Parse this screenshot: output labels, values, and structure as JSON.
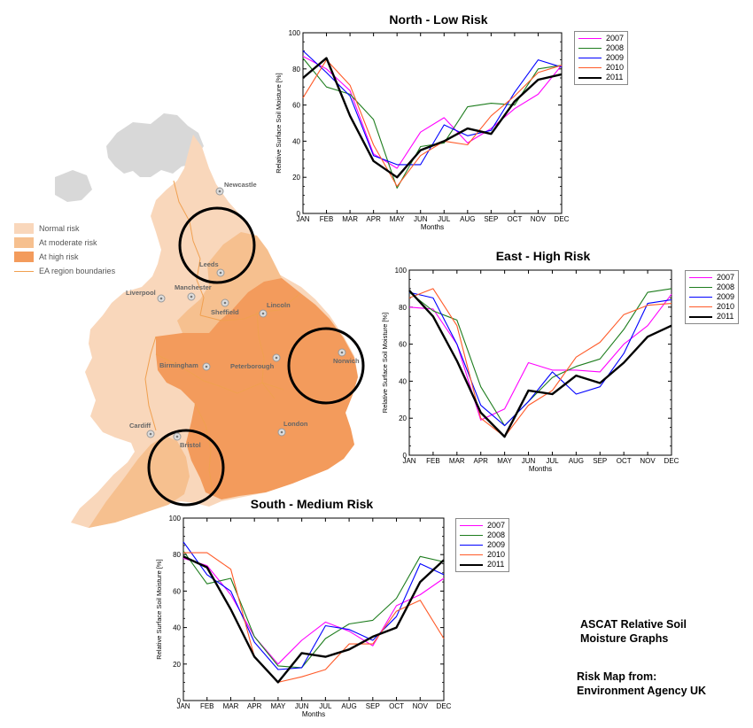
{
  "colors": {
    "normal_risk": "#f9d7bb",
    "moderate_risk": "#f6c08f",
    "high_risk": "#f39b5c",
    "boundary": "#f0a050",
    "land_grey": "#d8d8d8",
    "series": {
      "2007": "#ff00ff",
      "2008": "#1e7d1e",
      "2009": "#0000ff",
      "2010": "#ff5a28",
      "2011": "#000000"
    }
  },
  "map": {
    "legend": {
      "normal": "Normal risk",
      "moderate": "At moderate risk",
      "high": "At high risk",
      "boundaries": "EA region boundaries"
    },
    "cities": {
      "newcastle": "Newcastle",
      "leeds": "Leeds",
      "liverpool": "Liverpool",
      "manchester": "Manchester",
      "sheffield": "Sheffield",
      "lincoln": "Lincoln",
      "birmingham": "Birmingham",
      "peterborough": "Peterborough",
      "norwich": "Norwich",
      "cardiff": "Cardiff",
      "bristol": "Bristol",
      "london": "London"
    }
  },
  "captions": {
    "graphs_line1": "ASCAT Relative Soil",
    "graphs_line2": "Moisture Graphs",
    "source_line1": "Risk Map from:",
    "source_line2": "Environment Agency UK"
  },
  "chart_data": [
    {
      "type": "line",
      "title": "North - Low Risk",
      "xlabel": "Months",
      "ylabel": "Relative Surface Soil Moisture [%]",
      "categories": [
        "JAN",
        "FEB",
        "MAR",
        "APR",
        "MAY",
        "JUN",
        "JUL",
        "AUG",
        "SEP",
        "OCT",
        "NOV",
        "DEC"
      ],
      "ylim": [
        0,
        100
      ],
      "yticks": [
        0,
        20,
        40,
        60,
        80,
        100
      ],
      "series": [
        {
          "name": "2007",
          "values": [
            87,
            80,
            68,
            33,
            25,
            45,
            53,
            39,
            47,
            58,
            66,
            82
          ]
        },
        {
          "name": "2008",
          "values": [
            86,
            70,
            66,
            52,
            14,
            37,
            39,
            59,
            61,
            60,
            80,
            82
          ]
        },
        {
          "name": "2009",
          "values": [
            90,
            78,
            65,
            32,
            27,
            27,
            49,
            43,
            46,
            67,
            85,
            81
          ]
        },
        {
          "name": "2010",
          "values": [
            64,
            85,
            71,
            38,
            15,
            32,
            40,
            38,
            54,
            65,
            78,
            82
          ]
        },
        {
          "name": "2011",
          "values": [
            75,
            86,
            54,
            29,
            20,
            35,
            40,
            47,
            44,
            62,
            74,
            77
          ]
        }
      ]
    },
    {
      "type": "line",
      "title": "East - High Risk",
      "xlabel": "Months",
      "ylabel": "Relative Surface Soil Moisture [%]",
      "categories": [
        "JAN",
        "FEB",
        "MAR",
        "APR",
        "MAY",
        "JUN",
        "JUL",
        "AUG",
        "SEP",
        "OCT",
        "NOV",
        "DEC"
      ],
      "ylim": [
        0,
        100
      ],
      "yticks": [
        0,
        20,
        40,
        60,
        80,
        100
      ],
      "series": [
        {
          "name": "2007",
          "values": [
            80,
            79,
            60,
            19,
            25,
            50,
            46,
            46,
            45,
            60,
            70,
            87
          ]
        },
        {
          "name": "2008",
          "values": [
            88,
            78,
            73,
            37,
            16,
            29,
            42,
            48,
            52,
            68,
            88,
            90
          ]
        },
        {
          "name": "2009",
          "values": [
            88,
            85,
            60,
            27,
            16,
            29,
            45,
            33,
            37,
            55,
            82,
            84
          ]
        },
        {
          "name": "2010",
          "values": [
            85,
            90,
            70,
            20,
            10,
            27,
            35,
            53,
            61,
            76,
            81,
            82
          ]
        },
        {
          "name": "2011",
          "values": [
            89,
            75,
            51,
            23,
            10,
            35,
            33,
            43,
            39,
            50,
            64,
            70
          ]
        }
      ]
    },
    {
      "type": "line",
      "title": "South - Medium Risk",
      "xlabel": "Months",
      "ylabel": "Relative Surface Soil Moisture [%]",
      "categories": [
        "JAN",
        "FEB",
        "MAR",
        "APR",
        "MAY",
        "JUN",
        "JUL",
        "AUG",
        "SEP",
        "OCT",
        "NOV",
        "DEC"
      ],
      "ylim": [
        0,
        100
      ],
      "yticks": [
        0,
        20,
        40,
        60,
        80,
        100
      ],
      "series": [
        {
          "name": "2007",
          "values": [
            78,
            74,
            58,
            35,
            20,
            33,
            43,
            38,
            30,
            52,
            58,
            67
          ]
        },
        {
          "name": "2008",
          "values": [
            82,
            64,
            67,
            35,
            19,
            18,
            34,
            42,
            44,
            56,
            79,
            76
          ]
        },
        {
          "name": "2009",
          "values": [
            87,
            69,
            60,
            32,
            17,
            18,
            41,
            39,
            33,
            46,
            75,
            69
          ]
        },
        {
          "name": "2010",
          "values": [
            81,
            81,
            72,
            24,
            10,
            13,
            17,
            31,
            31,
            49,
            55,
            34
          ]
        },
        {
          "name": "2011",
          "values": [
            79,
            73,
            50,
            24,
            10,
            26,
            24,
            28,
            35,
            40,
            65,
            77
          ]
        }
      ]
    }
  ]
}
